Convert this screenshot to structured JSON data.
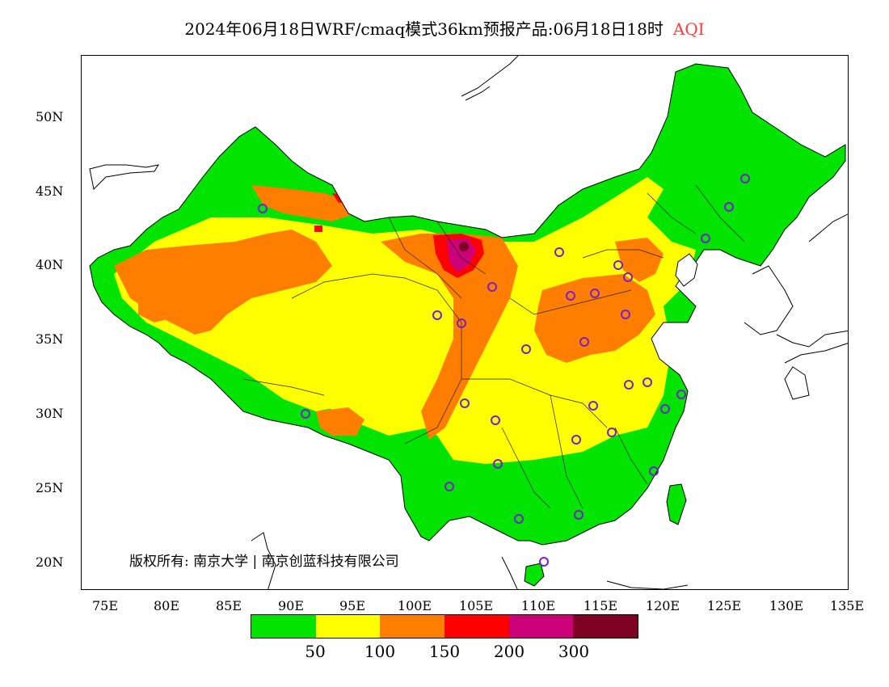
{
  "header": {
    "title": "2024年06月18日WRF/cmaq模式36km预报产品:06月18日18时",
    "product": "AQI"
  },
  "map": {
    "lat_ticks": [
      "50N",
      "45N",
      "40N",
      "35N",
      "30N",
      "25N",
      "20N"
    ],
    "lon_ticks": [
      "75E",
      "80E",
      "85E",
      "90E",
      "95E",
      "100E",
      "105E",
      "110E",
      "115E",
      "120E",
      "125E",
      "130E",
      "135E"
    ],
    "lon_range": [
      73,
      135
    ],
    "lat_range": [
      18,
      54
    ],
    "copyright": "版权所有: 南京大学 | 南京创蓝科技有限公司"
  },
  "legend": {
    "colors": [
      "#00e400",
      "#ffff00",
      "#ff7e00",
      "#ff0000",
      "#cc0077",
      "#7e0023"
    ],
    "ticks": [
      "50",
      "100",
      "150",
      "200",
      "300"
    ]
  }
}
